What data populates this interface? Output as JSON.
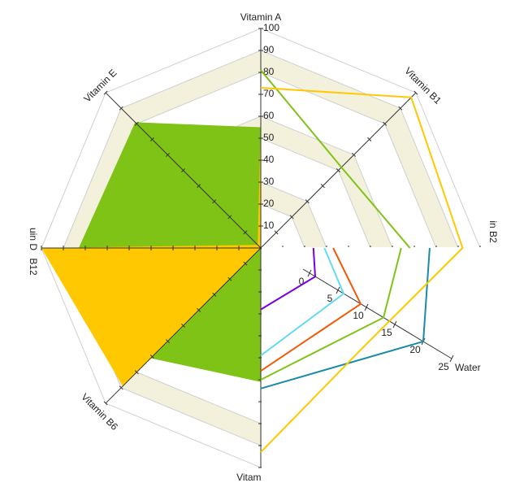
{
  "chart_data": [
    {
      "type": "radar",
      "categories": [
        "Vitamin A",
        "Vitamin B1",
        "in B2",
        null,
        "Vitamnd",
        "Vitamin B6",
        "uin D",
        "Vitamin E"
      ],
      "extra_label": "B12",
      "rlim": [
        0,
        100
      ],
      "rticks": [
        10,
        20,
        30,
        40,
        50,
        60,
        70,
        80,
        90,
        100
      ],
      "bands": [
        [
          80,
          90
        ],
        [
          50,
          60
        ],
        [
          20,
          30
        ]
      ],
      "band_color": "#f3f1dc",
      "series": [
        {
          "color": "#7ec315",
          "fill": true,
          "values": [
            55,
            0,
            0,
            0,
            61,
            71,
            83,
            81
          ]
        },
        {
          "color": "#ffc800",
          "fill": true,
          "values": [
            57,
            0,
            0,
            0,
            0,
            89,
            100,
            2
          ]
        },
        {
          "color": "#7ec315",
          "fill": false,
          "values": [
            81,
            52,
            68,
            null,
            null,
            null,
            null,
            null
          ]
        },
        {
          "color": "#ffc800",
          "fill": false,
          "values": [
            73,
            97,
            92,
            65,
            93,
            null,
            null,
            null
          ]
        }
      ]
    },
    {
      "type": "radar-axis",
      "axis_title": "Water",
      "xlim": [
        0,
        25
      ],
      "xticks": [
        0,
        5,
        10,
        15,
        20,
        25
      ],
      "series": [
        {
          "color": "#7b00e0",
          "values": [
            24,
            1,
            28
          ]
        },
        {
          "color": "#66d9f5",
          "values": [
            29,
            6,
            49
          ]
        },
        {
          "color": "#f05a0a",
          "values": [
            33,
            9,
            56
          ]
        },
        {
          "color": "#7ec315",
          "values": [
            64,
            13,
            60
          ]
        },
        {
          "color": "#1a8ca8",
          "values": [
            77,
            20,
            64
          ]
        }
      ]
    }
  ]
}
